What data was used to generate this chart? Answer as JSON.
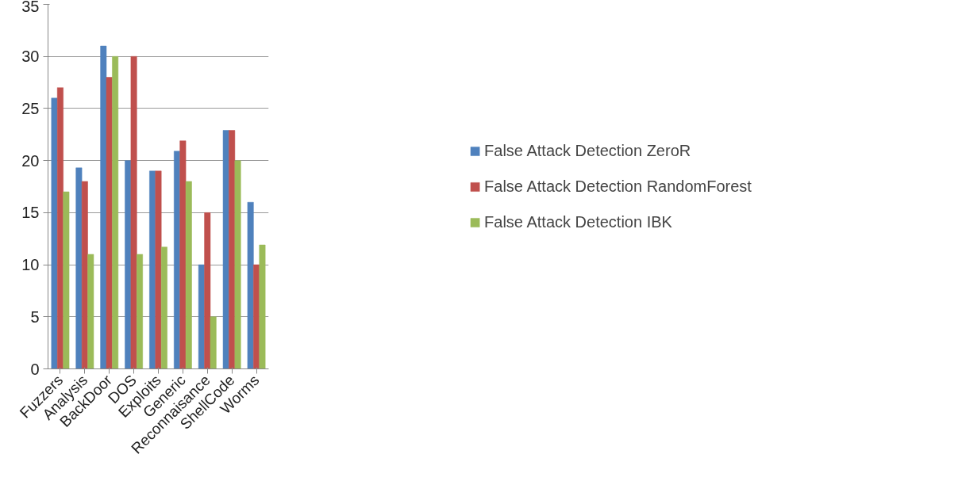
{
  "chart_data": {
    "type": "bar",
    "categories": [
      "Fuzzers",
      "Analysis",
      "BackDoor",
      "DOS",
      "Exploits",
      "Generic",
      "Reconnaisance",
      "ShellCode",
      "Worms"
    ],
    "series": [
      {
        "name": "False Attack Detection ZeroR",
        "color": "#4f81bd",
        "values": [
          26,
          19.3,
          31,
          20,
          19,
          20.9,
          10,
          22.9,
          16
        ]
      },
      {
        "name": "False Attack Detection RandomForest",
        "color": "#c0504d",
        "values": [
          27,
          18,
          28,
          30,
          19,
          21.9,
          15,
          22.9,
          10
        ]
      },
      {
        "name": "False Attack Detection IBK",
        "color": "#9bbb59",
        "values": [
          17,
          11,
          30,
          11,
          11.7,
          18,
          5,
          20,
          11.9
        ]
      }
    ],
    "ylim": [
      0,
      35
    ],
    "yticks": [
      0,
      5,
      10,
      15,
      20,
      25,
      30,
      35
    ],
    "grid": "y",
    "legend": "right"
  }
}
